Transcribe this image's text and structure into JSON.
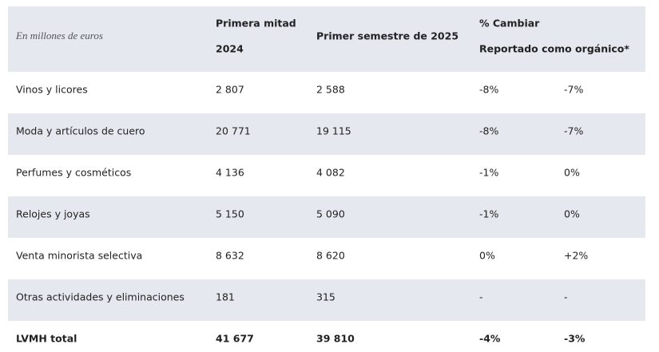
{
  "header": {
    "caption": "En millones de euros",
    "col1_line1": "Primera mitad",
    "col1_line2": "2024",
    "col2": "Primer semestre de 2025",
    "col3_line1": "% Cambiar",
    "col3_line2": "Reportado como orgánico*"
  },
  "table": {
    "rows": [
      [
        "Vinos y licores",
        "2 807",
        "2 588",
        "-8%",
        "-7%"
      ],
      [
        "Moda y artículos de cuero",
        "20 771",
        "19 115",
        "-8%",
        "-7%"
      ],
      [
        "Perfumes y cosméticos",
        "4 136",
        "4 082",
        "-1%",
        "0%"
      ],
      [
        "Relojes y joyas",
        "5 150",
        "5 090",
        "-1%",
        "0%"
      ],
      [
        "Venta minorista selectiva",
        "8 632",
        "8 620",
        "0%",
        "+2%"
      ],
      [
        "Otras actividades y eliminaciones",
        "181",
        "315",
        "-",
        "-"
      ],
      [
        "LVMH total",
        "41 677",
        "39 810",
        "-4%",
        "-3%"
      ]
    ]
  }
}
